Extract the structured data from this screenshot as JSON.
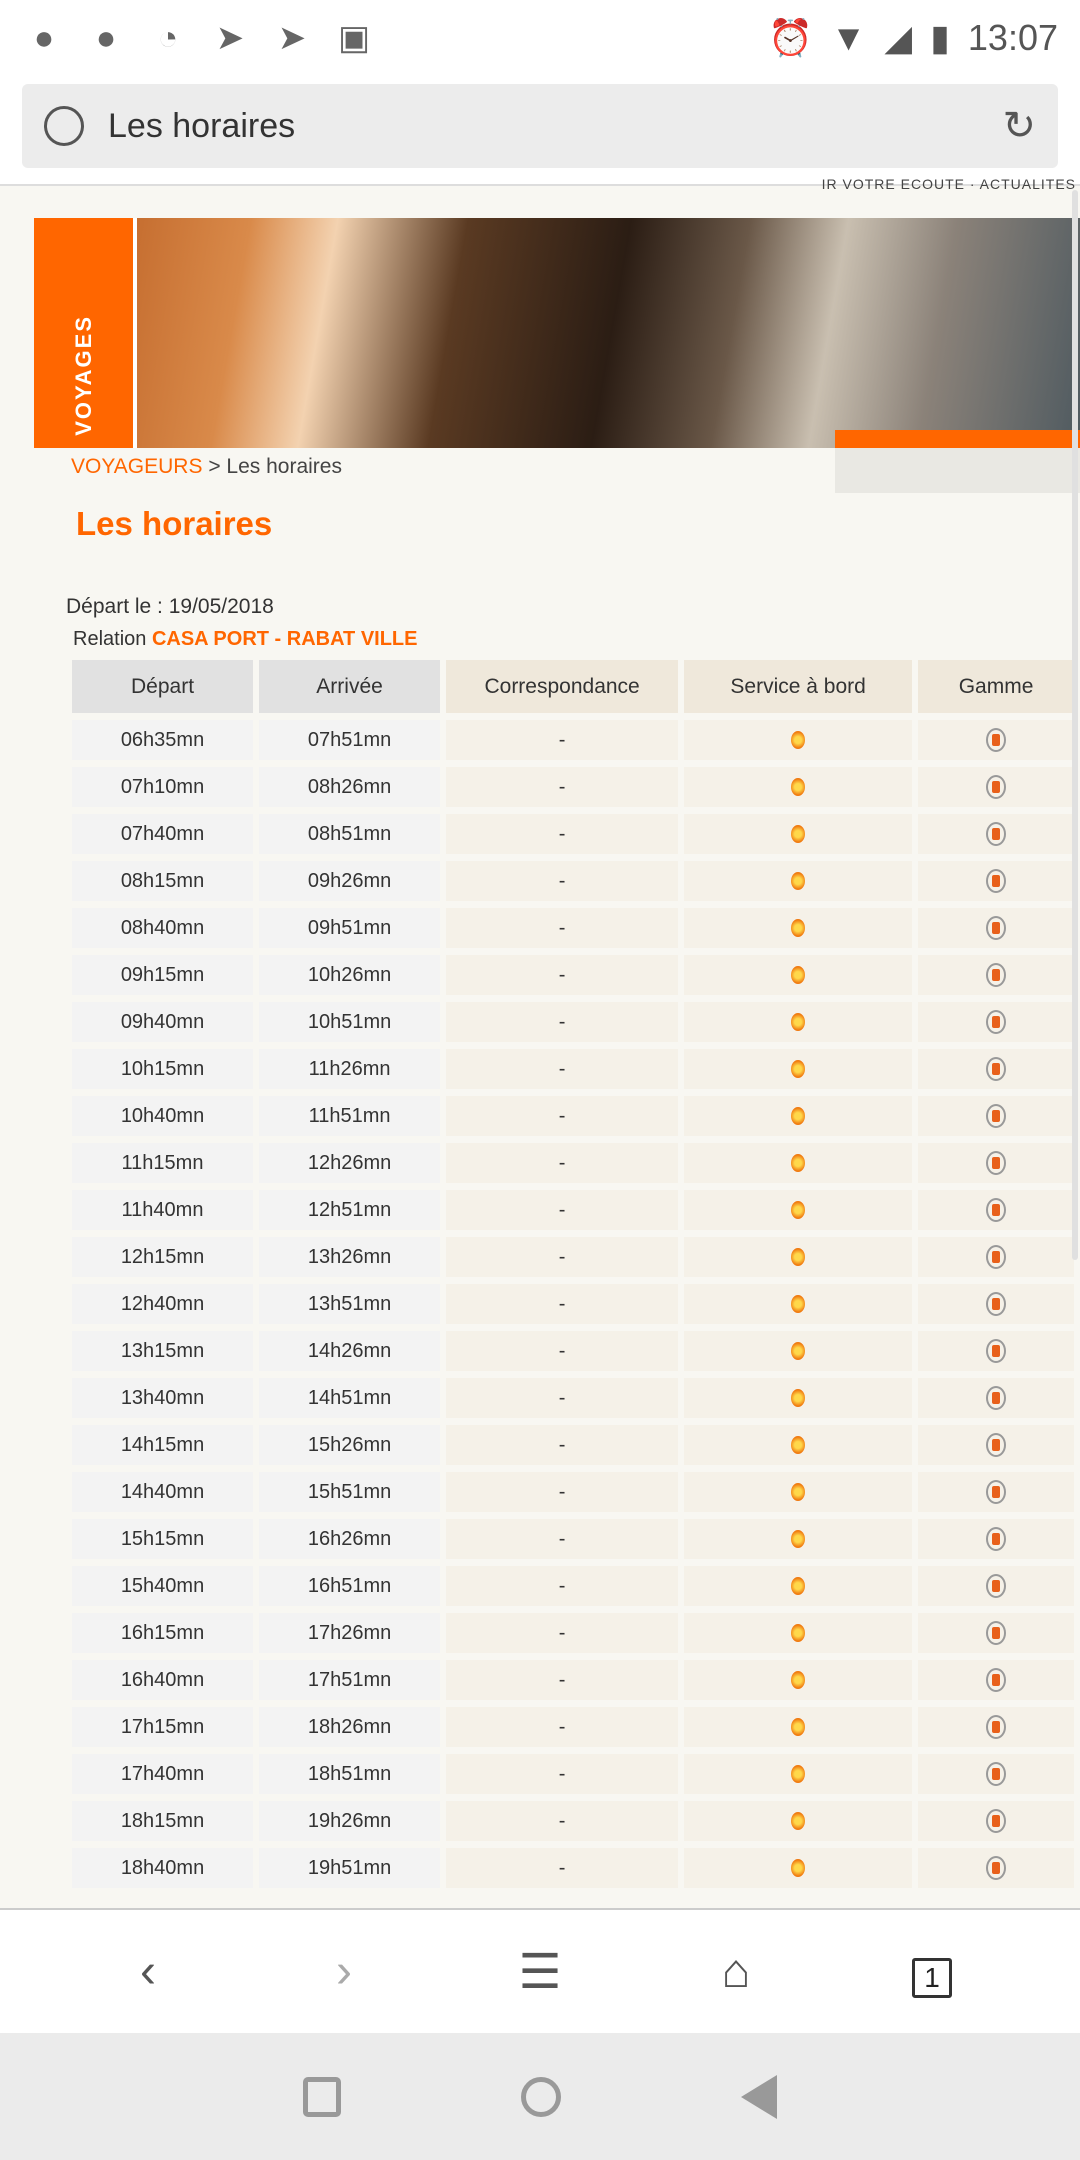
{
  "status": {
    "time": "13:07",
    "icons_left": [
      "wechat-icon",
      "wechat-icon",
      "qq-icon",
      "telegram-icon",
      "telegram-icon",
      "image-icon"
    ],
    "icons_right": [
      "alarm-icon",
      "wifi-icon",
      "no-signal-icon",
      "battery-icon"
    ]
  },
  "browser": {
    "title": "Les horaires"
  },
  "page": {
    "top_links": "IR VOTRE ECOUTE  ·  ACTUALITES",
    "banner_label": "VOYAGES",
    "breadcrumb_link": "VOYAGEURS",
    "breadcrumb_sep": " > ",
    "breadcrumb_current": "Les horaires",
    "heading": "Les horaires",
    "depart_label": "Départ le : 19/05/2018",
    "relation_label": "Relation ",
    "relation_value": "CASA PORT - RABAT VILLE"
  },
  "table": {
    "headers": [
      "Départ",
      "Arrivée",
      "Correspondance",
      "Service à bord",
      "Gamme"
    ],
    "rows": [
      [
        "06h35mn",
        "07h51mn"
      ],
      [
        "07h10mn",
        "08h26mn"
      ],
      [
        "07h40mn",
        "08h51mn"
      ],
      [
        "08h15mn",
        "09h26mn"
      ],
      [
        "08h40mn",
        "09h51mn"
      ],
      [
        "09h15mn",
        "10h26mn"
      ],
      [
        "09h40mn",
        "10h51mn"
      ],
      [
        "10h15mn",
        "11h26mn"
      ],
      [
        "10h40mn",
        "11h51mn"
      ],
      [
        "11h15mn",
        "12h26mn"
      ],
      [
        "11h40mn",
        "12h51mn"
      ],
      [
        "12h15mn",
        "13h26mn"
      ],
      [
        "12h40mn",
        "13h51mn"
      ],
      [
        "13h15mn",
        "14h26mn"
      ],
      [
        "13h40mn",
        "14h51mn"
      ],
      [
        "14h15mn",
        "15h26mn"
      ],
      [
        "14h40mn",
        "15h51mn"
      ],
      [
        "15h15mn",
        "16h26mn"
      ],
      [
        "15h40mn",
        "16h51mn"
      ],
      [
        "16h15mn",
        "17h26mn"
      ],
      [
        "16h40mn",
        "17h51mn"
      ],
      [
        "17h15mn",
        "18h26mn"
      ],
      [
        "17h40mn",
        "18h51mn"
      ],
      [
        "18h15mn",
        "19h26mn"
      ],
      [
        "18h40mn",
        "19h51mn"
      ]
    ],
    "correspondance": "-",
    "service_icon": "meal-service-icon",
    "gamme_icon": "train-icon"
  },
  "bottom_nav": {
    "tab_count": "1"
  },
  "colors": {
    "accent": "#ff6600"
  }
}
